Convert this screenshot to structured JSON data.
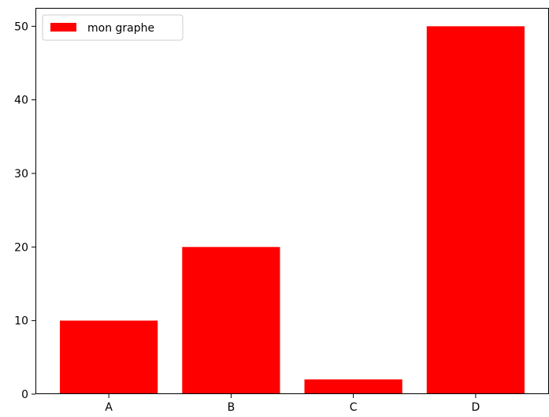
{
  "chart_data": {
    "type": "bar",
    "categories": [
      "A",
      "B",
      "C",
      "D"
    ],
    "series": [
      {
        "name": "mon graphe",
        "values": [
          10,
          20,
          2,
          50
        ],
        "color": "#ff0000"
      }
    ],
    "title": "",
    "xlabel": "",
    "ylabel": "",
    "ylim": [
      0,
      52.5
    ],
    "yticks": [
      0,
      10,
      20,
      30,
      40,
      50
    ],
    "grid": false,
    "legend": {
      "placement": "top-left"
    }
  }
}
